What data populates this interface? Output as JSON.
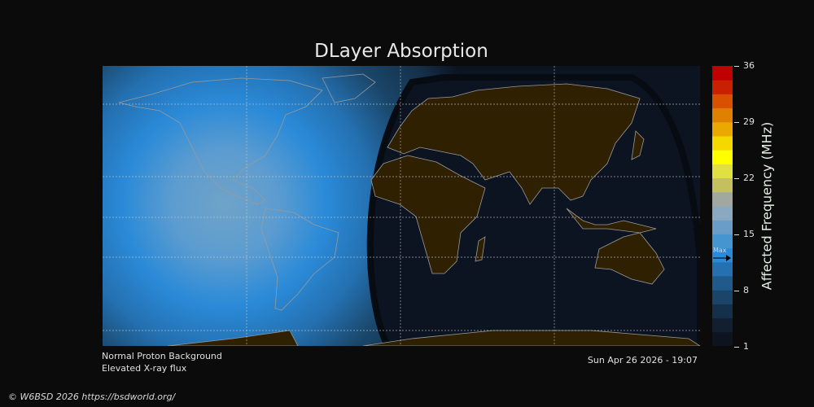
{
  "title": "DLayer Absorption",
  "colorbar": {
    "label": "Affected Frequency (MHz)",
    "ticks": [
      "36",
      "29",
      "22",
      "15",
      "8",
      "1"
    ],
    "range": [
      1,
      36
    ],
    "max_label": "Max",
    "max_value": 12,
    "colors": [
      "#0d1420",
      "#111f30",
      "#15304a",
      "#1a4568",
      "#1f5a8a",
      "#2470b0",
      "#2a8ad8",
      "#4596d0",
      "#6a9ec8",
      "#8aa8c0",
      "#a0a8a0",
      "#c4c060",
      "#e0e040",
      "#ffff00",
      "#f4d800",
      "#eaa800",
      "#e08000",
      "#d85000",
      "#c82000",
      "#c00000"
    ]
  },
  "map": {
    "projection": "equirectangular",
    "gridlines": true,
    "day_center_color": "#6fa3c8",
    "night_color": "#0c1422",
    "land_color": "#2e2000",
    "coast_color": "#9a9a9a"
  },
  "status": {
    "proton": "Normal Proton Background",
    "xray": "Elevated X-ray flux",
    "datetime": "Sun Apr 26 2026 - 19:07"
  },
  "copyright": "© W6BSD 2026 https://bsdworld.org/"
}
